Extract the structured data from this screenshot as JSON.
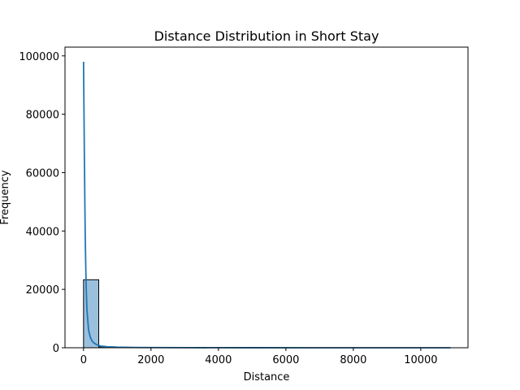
{
  "chart_data": {
    "type": "bar",
    "title": "Distance Distribution in Short Stay",
    "xlabel": "Distance",
    "ylabel": "Frequency",
    "xlim": [
      -550,
      11400
    ],
    "ylim": [
      0,
      103000
    ],
    "xticks": [
      0,
      2000,
      4000,
      6000,
      8000,
      10000
    ],
    "yticks": [
      0,
      20000,
      40000,
      60000,
      80000,
      100000
    ],
    "bins": [
      {
        "x0": 0,
        "x1": 450,
        "count": 23300
      },
      {
        "x0": 450,
        "x1": 900,
        "count": 320
      },
      {
        "x0": 900,
        "x1": 1350,
        "count": 120
      },
      {
        "x0": 1350,
        "x1": 1800,
        "count": 60
      },
      {
        "x0": 1800,
        "x1": 2250,
        "count": 40
      },
      {
        "x0": 2250,
        "x1": 2700,
        "count": 20
      },
      {
        "x0": 2700,
        "x1": 3150,
        "count": 10
      }
    ],
    "kde": {
      "x": [
        0,
        25,
        50,
        75,
        100,
        150,
        200,
        250,
        300,
        400,
        500,
        700,
        1000,
        1500,
        2000,
        3000,
        5000,
        8000,
        10880
      ],
      "y": [
        98000,
        65000,
        38000,
        22000,
        13000,
        6000,
        3600,
        2400,
        1700,
        1000,
        600,
        350,
        200,
        100,
        60,
        30,
        10,
        5,
        0
      ]
    },
    "grid": false,
    "colors": {
      "bar_fill": "#9bc0dd",
      "bar_edge": "#000000",
      "kde_line": "#1f77b4"
    }
  }
}
